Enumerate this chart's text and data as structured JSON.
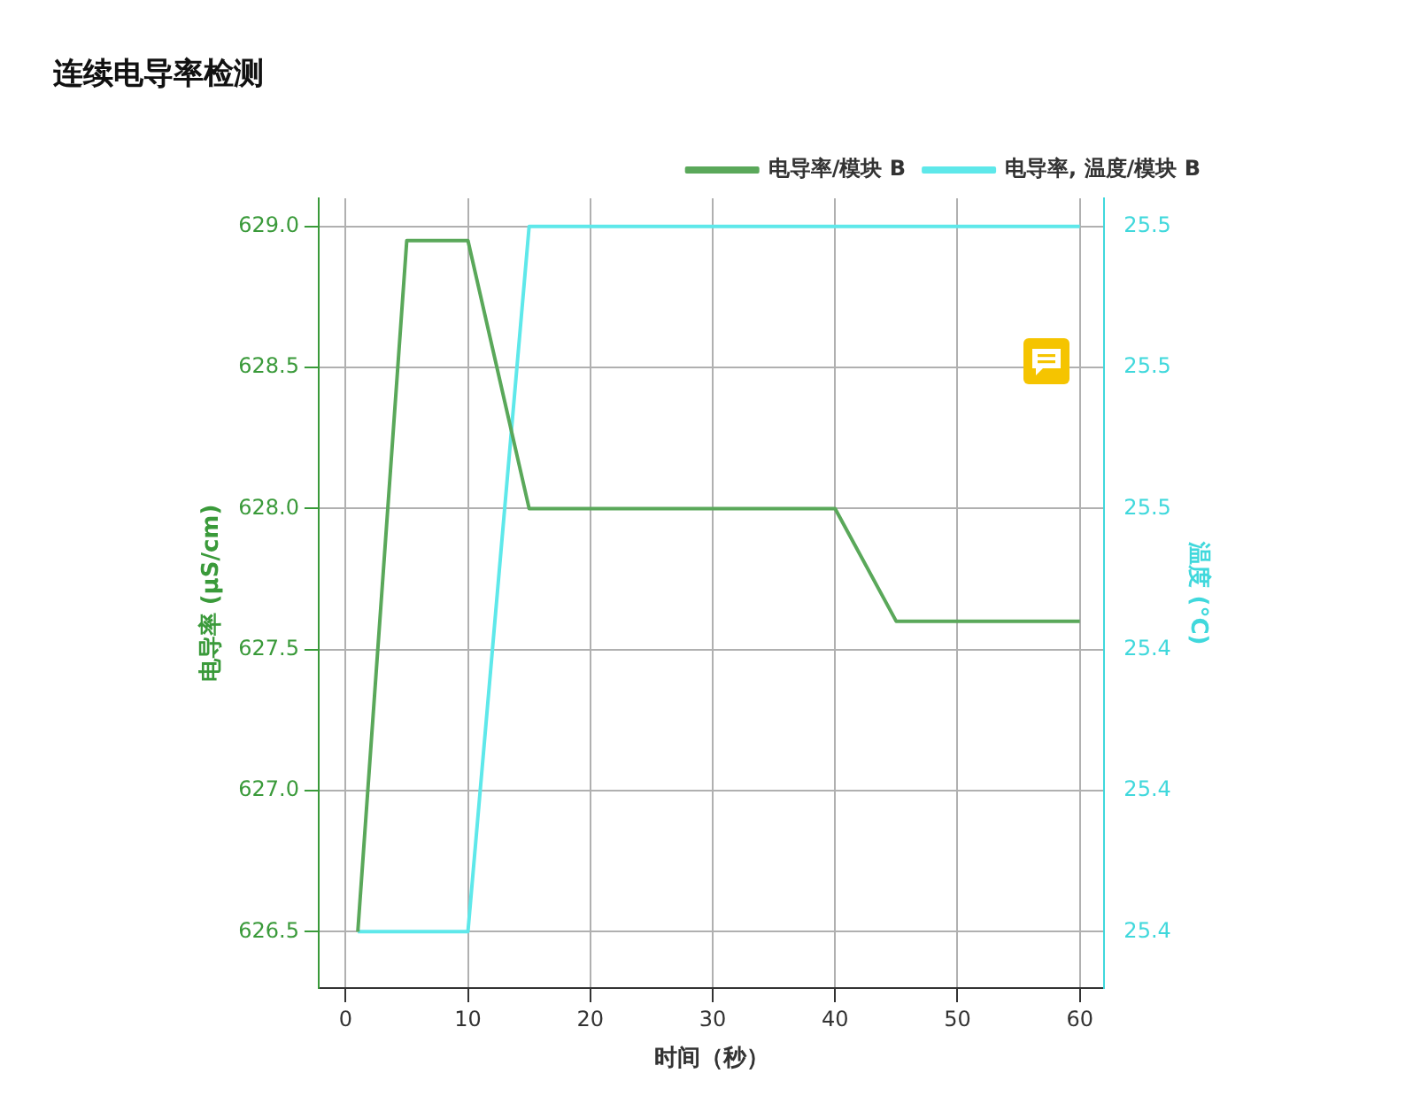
{
  "chart_data": {
    "type": "line",
    "title": "连续电导率检测",
    "xlabel": "时间（秒）",
    "ylabel": "电导率 (µS/cm)",
    "y2label": "温度 (°C)",
    "x": [
      1,
      5,
      10,
      15,
      40,
      45,
      60
    ],
    "series": [
      {
        "name": "电导率/模块 B",
        "color": "#5aa85a",
        "values": [
          626.5,
          628.95,
          628.95,
          628.0,
          628.0,
          627.6,
          627.6
        ]
      },
      {
        "name": "电导率, 温度/模块 B",
        "color": "#5ee8ea",
        "axis": "y2",
        "values": [
          25.4,
          25.4,
          25.4,
          25.5,
          25.5,
          25.5,
          25.5
        ]
      }
    ],
    "xlim": [
      -2.2,
      62
    ],
    "xticks": [
      0,
      10,
      20,
      30,
      40,
      50,
      60
    ],
    "ylim": [
      626.3,
      629.1
    ],
    "yticks": [
      626.5,
      {
        "value": 627,
        "label": "627.0"
      },
      627.5,
      {
        "value": 628,
        "label": "628.0"
      },
      628.5,
      {
        "value": 629,
        "label": "629.0"
      }
    ],
    "y2lim": [
      25.392,
      25.504
    ],
    "y2ticks": [
      {
        "value": 25.4,
        "label": "25.4"
      },
      {
        "value": 25.42,
        "label": "25.4"
      },
      {
        "value": 25.44,
        "label": "25.4"
      },
      {
        "value": 25.46,
        "label": "25.5"
      },
      {
        "value": 25.48,
        "label": "25.5"
      },
      {
        "value": 25.5,
        "label": "25.5"
      }
    ],
    "grid": true,
    "legend": "top right",
    "marker": "none",
    "line_style": "solid"
  }
}
